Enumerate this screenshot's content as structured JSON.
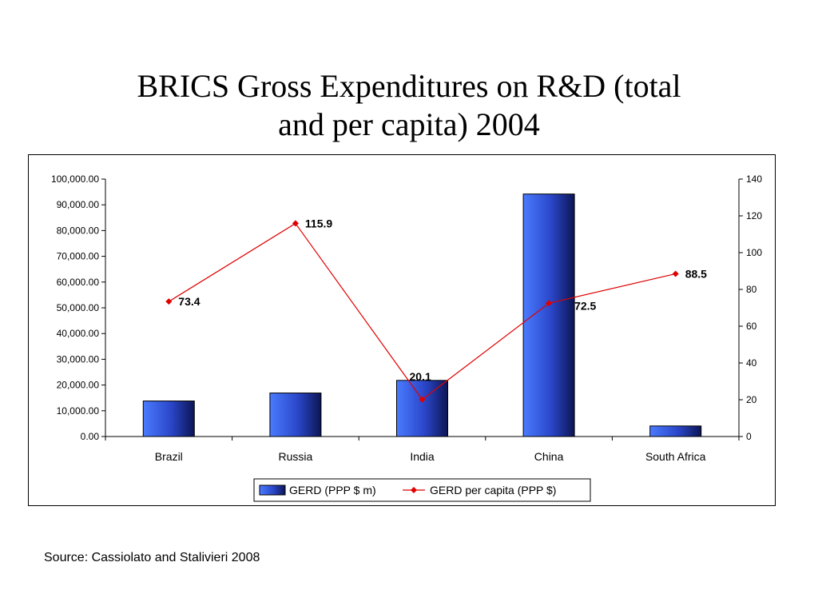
{
  "slide": {
    "title_line1": "BRICS Gross Expenditures on R&D (total",
    "title_line2": "and per capita) 2004",
    "source": "Source: Cassiolato and Stalivieri 2008"
  },
  "chart_data": {
    "type": "bar",
    "categories": [
      "Brazil",
      "Russia",
      "India",
      "China",
      "South Africa"
    ],
    "series": [
      {
        "name": "GERD (PPP $ m)",
        "type": "bar",
        "axis": "left",
        "color": "#2b4fd6",
        "values": [
          13800,
          16900,
          21800,
          94200,
          4100
        ]
      },
      {
        "name": "GERD per capita (PPP $)",
        "type": "line",
        "axis": "right",
        "color": "#e00000",
        "values": [
          73.4,
          115.9,
          20.1,
          72.5,
          88.5
        ],
        "labels": [
          "73.4",
          "115.9",
          "20.1",
          "72.5",
          "88.5"
        ]
      }
    ],
    "y_left": {
      "min": 0,
      "max": 100000,
      "ticks": [
        "0.00",
        "10,000.00",
        "20,000.00",
        "30,000.00",
        "40,000.00",
        "50,000.00",
        "60,000.00",
        "70,000.00",
        "80,000.00",
        "90,000.00",
        "100,000.00"
      ]
    },
    "y_right": {
      "min": 0,
      "max": 140,
      "ticks": [
        "0",
        "20",
        "40",
        "60",
        "80",
        "100",
        "120",
        "140"
      ]
    },
    "grid": false,
    "legend_position": "bottom"
  }
}
